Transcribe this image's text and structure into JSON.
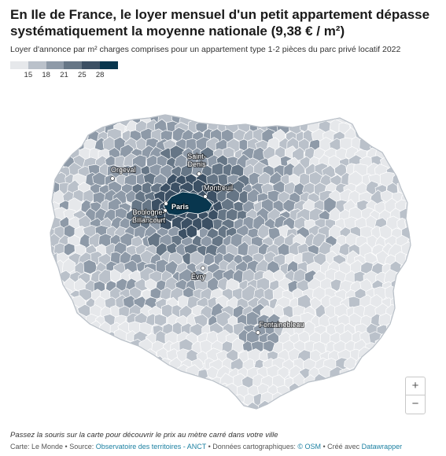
{
  "header": {
    "title": "En Ile de France, le loyer mensuel d'un petit appartement dépasse systématiquement la moyenne nationale (9,38 € / m²)",
    "subtitle": "Loyer d'annonce par m² charges comprises pour un appartement type 1-2 pièces du parc privé locatif 2022"
  },
  "legend": {
    "ticks": [
      "15",
      "18",
      "21",
      "25",
      "28"
    ],
    "colors": [
      "#e6e8eb",
      "#bac1ca",
      "#8e9aa8",
      "#667686",
      "#3c5064",
      "#08364e"
    ]
  },
  "map": {
    "cities": [
      {
        "name": "Orgeval"
      },
      {
        "name": "Saint-\nDenis"
      },
      {
        "name": "Montreuil"
      },
      {
        "name": "Paris"
      },
      {
        "name": "Boulogne-\nBillancourt"
      },
      {
        "name": "Évry"
      },
      {
        "name": "Fontainebleau"
      }
    ]
  },
  "controls": {
    "zoom_in_label": "+",
    "zoom_out_label": "−"
  },
  "notes": {
    "hint": "Passez la souris sur la carte pour découvrir le prix au mètre carré dans votre ville",
    "footer_prefix": "Carte: Le Monde • Source: ",
    "footer_source_link": "Observatoire des territoires - ANCT",
    "footer_mid": " • Données cartographiques: ",
    "footer_osm_link": "© OSM",
    "footer_mid2": " • Créé avec ",
    "footer_dw_link": "Datawrapper"
  }
}
